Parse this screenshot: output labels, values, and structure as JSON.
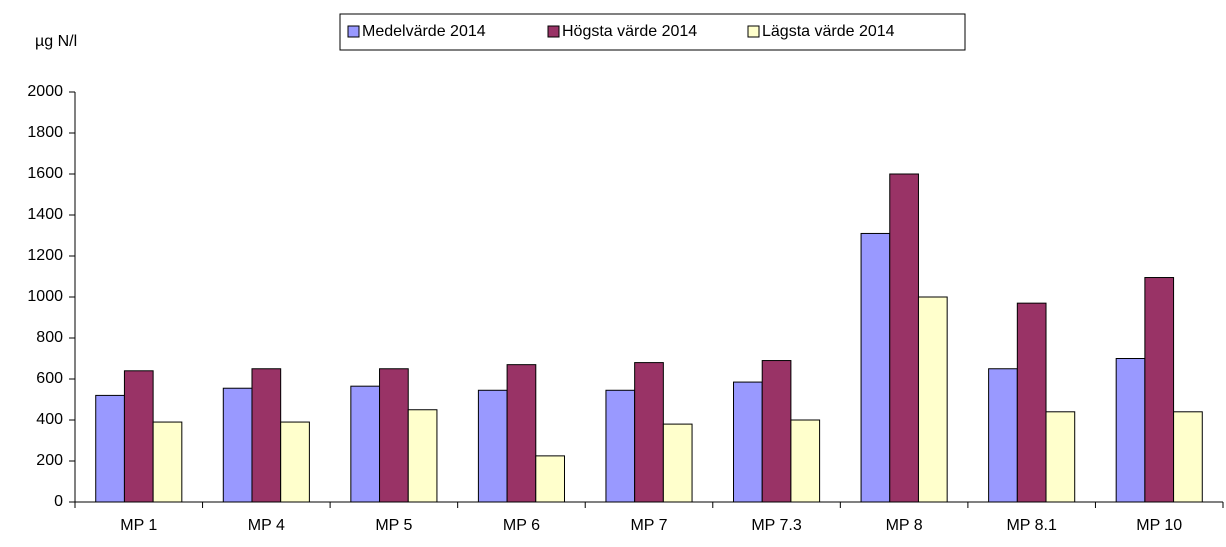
{
  "chart_data": {
    "type": "bar",
    "ylabel": "µg N/l",
    "categories": [
      "MP 1",
      "MP 4",
      "MP 5",
      "MP 6",
      "MP 7",
      "MP 7.3",
      "MP 8",
      "MP 8.1",
      "MP 10"
    ],
    "series": [
      {
        "name": "Medelvärde 2014",
        "color": "#9999ff",
        "values": [
          520,
          555,
          565,
          545,
          545,
          585,
          1310,
          650,
          700
        ]
      },
      {
        "name": "Högsta värde 2014",
        "color": "#993366",
        "values": [
          640,
          650,
          650,
          670,
          680,
          690,
          1600,
          970,
          1095
        ]
      },
      {
        "name": "Lägsta värde 2014",
        "color": "#ffffcc",
        "values": [
          390,
          390,
          450,
          225,
          380,
          400,
          1000,
          440,
          440
        ]
      }
    ],
    "ylim": [
      0,
      2000
    ],
    "yticks": [
      0,
      200,
      400,
      600,
      800,
      1000,
      1200,
      1400,
      1600,
      1800,
      2000
    ],
    "grid": false,
    "legend": "top"
  }
}
